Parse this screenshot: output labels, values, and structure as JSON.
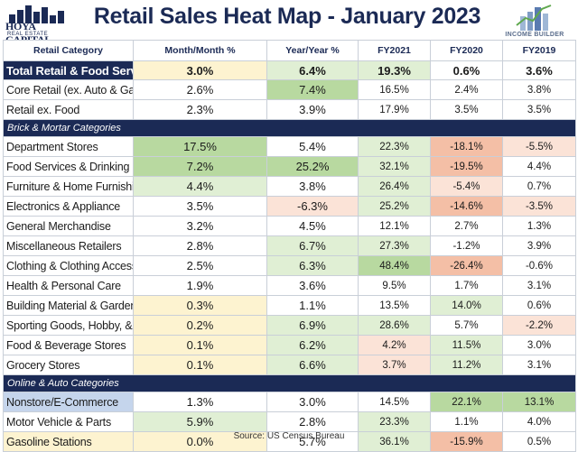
{
  "header": {
    "title": "Retail Sales Heat Map -  January 2023",
    "logo_left_name": "HOYA CAPITAL",
    "logo_left_sub": "REAL ESTATE",
    "logo_right_text": "INCOME BUILDER"
  },
  "colors": {
    "navy": "#1b2a55",
    "green": "#b8d9a0",
    "light_green": "#e0efd4",
    "red": "#f4bfa6",
    "light_red": "#fbe3d7",
    "yellow": "#fdf3d0",
    "blue": "#c5d5ec",
    "white": "#ffffff"
  },
  "footer": {
    "source": "Source: US Census Bureau"
  },
  "chart_data": {
    "type": "table",
    "title": "Retail Sales Heat Map -  January 2023",
    "columns": [
      "Retail Category",
      "Month/Month %",
      "Year/Year %",
      "FY2021",
      "FY2020",
      "FY2019"
    ],
    "rows": [
      {
        "kind": "total",
        "category": "Total Retail & Food Services",
        "mom": "3.0%",
        "yoy": "6.4%",
        "fy2021": "19.3%",
        "fy2020": "0.6%",
        "fy2019": "3.6%",
        "bg": [
          "navy",
          "yellow",
          "light_green",
          "light_green",
          "white",
          "white"
        ]
      },
      {
        "kind": "row",
        "category": "Core Retail (ex. Auto & Gas)",
        "mom": "2.6%",
        "yoy": "7.4%",
        "fy2021": "16.5%",
        "fy2020": "2.4%",
        "fy2019": "3.8%",
        "bg": [
          "white",
          "white",
          "green",
          "white",
          "white",
          "white"
        ]
      },
      {
        "kind": "row",
        "category": "Retail ex. Food",
        "mom": "2.3%",
        "yoy": "3.9%",
        "fy2021": "17.9%",
        "fy2020": "3.5%",
        "fy2019": "3.5%",
        "bg": [
          "white",
          "white",
          "white",
          "white",
          "white",
          "white"
        ]
      },
      {
        "kind": "section",
        "label": "Brick & Mortar Categories"
      },
      {
        "kind": "row",
        "category": "Department Stores",
        "mom": "17.5%",
        "yoy": "5.4%",
        "fy2021": "22.3%",
        "fy2020": "-18.1%",
        "fy2019": "-5.5%",
        "bg": [
          "white",
          "green",
          "white",
          "light_green",
          "red",
          "light_red"
        ]
      },
      {
        "kind": "row",
        "category": "Food Services & Drinking Places",
        "mom": "7.2%",
        "yoy": "25.2%",
        "fy2021": "32.1%",
        "fy2020": "-19.5%",
        "fy2019": "4.4%",
        "bg": [
          "white",
          "green",
          "green",
          "light_green",
          "red",
          "white"
        ]
      },
      {
        "kind": "row",
        "category": "Furniture & Home Furnishings",
        "mom": "4.4%",
        "yoy": "3.8%",
        "fy2021": "26.4%",
        "fy2020": "-5.4%",
        "fy2019": "0.7%",
        "bg": [
          "white",
          "light_green",
          "white",
          "light_green",
          "light_red",
          "white"
        ]
      },
      {
        "kind": "row",
        "category": "Electronics & Appliance",
        "mom": "3.5%",
        "yoy": "-6.3%",
        "fy2021": "25.2%",
        "fy2020": "-14.6%",
        "fy2019": "-3.5%",
        "bg": [
          "white",
          "white",
          "light_red",
          "light_green",
          "red",
          "light_red"
        ]
      },
      {
        "kind": "row",
        "category": "General Merchandise",
        "mom": "3.2%",
        "yoy": "4.5%",
        "fy2021": "12.1%",
        "fy2020": "2.7%",
        "fy2019": "1.3%",
        "bg": [
          "white",
          "white",
          "white",
          "white",
          "white",
          "white"
        ]
      },
      {
        "kind": "row",
        "category": "Miscellaneous Retailers",
        "mom": "2.8%",
        "yoy": "6.7%",
        "fy2021": "27.3%",
        "fy2020": "-1.2%",
        "fy2019": "3.9%",
        "bg": [
          "white",
          "white",
          "light_green",
          "light_green",
          "white",
          "white"
        ]
      },
      {
        "kind": "row",
        "category": "Clothing & Clothing Accessories",
        "mom": "2.5%",
        "yoy": "6.3%",
        "fy2021": "48.4%",
        "fy2020": "-26.4%",
        "fy2019": "-0.6%",
        "bg": [
          "white",
          "white",
          "light_green",
          "green",
          "red",
          "white"
        ]
      },
      {
        "kind": "row",
        "category": "Health & Personal Care",
        "mom": "1.9%",
        "yoy": "3.6%",
        "fy2021": "9.5%",
        "fy2020": "1.7%",
        "fy2019": "3.1%",
        "bg": [
          "white",
          "white",
          "white",
          "white",
          "white",
          "white"
        ]
      },
      {
        "kind": "row",
        "category": "Building Material & Garden",
        "mom": "0.3%",
        "yoy": "1.1%",
        "fy2021": "13.5%",
        "fy2020": "14.0%",
        "fy2019": "0.6%",
        "bg": [
          "white",
          "yellow",
          "white",
          "white",
          "light_green",
          "white"
        ]
      },
      {
        "kind": "row",
        "category": "Sporting Goods, Hobby, & Book",
        "mom": "0.2%",
        "yoy": "6.9%",
        "fy2021": "28.6%",
        "fy2020": "5.7%",
        "fy2019": "-2.2%",
        "bg": [
          "white",
          "yellow",
          "light_green",
          "light_green",
          "white",
          "light_red"
        ]
      },
      {
        "kind": "row",
        "category": "Food & Beverage Stores",
        "mom": "0.1%",
        "yoy": "6.2%",
        "fy2021": "4.2%",
        "fy2020": "11.5%",
        "fy2019": "3.0%",
        "bg": [
          "white",
          "yellow",
          "light_green",
          "light_red",
          "light_green",
          "white"
        ]
      },
      {
        "kind": "row",
        "category": "Grocery Stores",
        "mom": "0.1%",
        "yoy": "6.6%",
        "fy2021": "3.7%",
        "fy2020": "11.2%",
        "fy2019": "3.1%",
        "bg": [
          "white",
          "yellow",
          "light_green",
          "light_red",
          "light_green",
          "white"
        ]
      },
      {
        "kind": "section",
        "label": "Online & Auto Categories"
      },
      {
        "kind": "row",
        "category": "Nonstore/E-Commerce",
        "mom": "1.3%",
        "yoy": "3.0%",
        "fy2021": "14.5%",
        "fy2020": "22.1%",
        "fy2019": "13.1%",
        "bg": [
          "blue",
          "white",
          "white",
          "white",
          "green",
          "green"
        ]
      },
      {
        "kind": "row",
        "category": "Motor Vehicle & Parts",
        "mom": "5.9%",
        "yoy": "2.8%",
        "fy2021": "23.3%",
        "fy2020": "1.1%",
        "fy2019": "4.0%",
        "bg": [
          "white",
          "light_green",
          "white",
          "light_green",
          "white",
          "white"
        ]
      },
      {
        "kind": "row",
        "category": "Gasoline Stations",
        "mom": "0.0%",
        "yoy": "5.7%",
        "fy2021": "36.1%",
        "fy2020": "-15.9%",
        "fy2019": "0.5%",
        "bg": [
          "yellow",
          "yellow",
          "white",
          "light_green",
          "red",
          "white"
        ]
      }
    ]
  }
}
